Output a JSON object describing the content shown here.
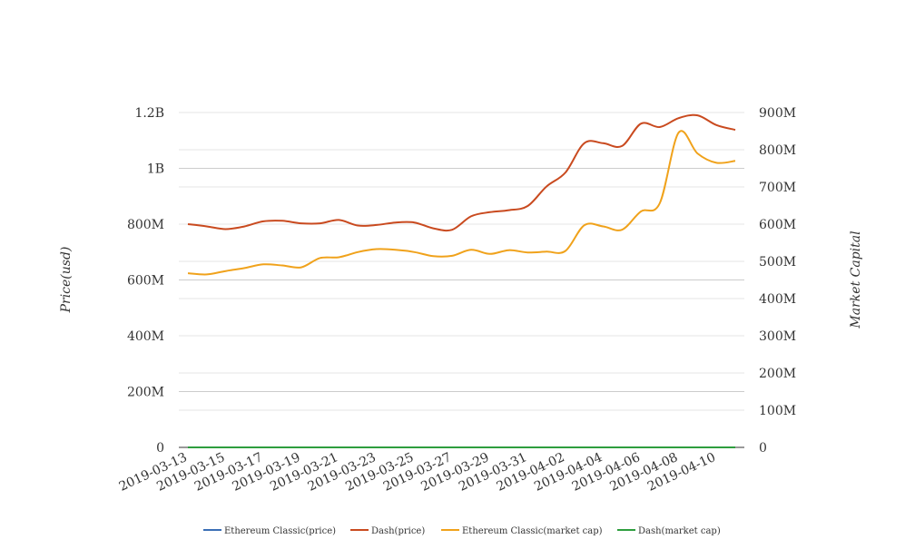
{
  "chart_data": {
    "type": "line",
    "title": "",
    "x": [
      "2019-03-13",
      "2019-03-14",
      "2019-03-15",
      "2019-03-16",
      "2019-03-17",
      "2019-03-18",
      "2019-03-19",
      "2019-03-20",
      "2019-03-21",
      "2019-03-22",
      "2019-03-23",
      "2019-03-24",
      "2019-03-25",
      "2019-03-26",
      "2019-03-27",
      "2019-03-28",
      "2019-03-29",
      "2019-03-30",
      "2019-03-31",
      "2019-04-01",
      "2019-04-02",
      "2019-04-03",
      "2019-04-04",
      "2019-04-05",
      "2019-04-06",
      "2019-04-07",
      "2019-04-08",
      "2019-04-09",
      "2019-04-10",
      "2019-04-11"
    ],
    "x_tick_labels": [
      "2019-03-13",
      "2019-03-15",
      "2019-03-17",
      "2019-03-19",
      "2019-03-21",
      "2019-03-23",
      "2019-03-25",
      "2019-03-27",
      "2019-03-29",
      "2019-03-31",
      "2019-04-02",
      "2019-04-04",
      "2019-04-06",
      "2019-04-08",
      "2019-04-10"
    ],
    "y_left": {
      "label": "Price(usd)",
      "range": [
        0,
        1200000000
      ],
      "ticks": [
        0,
        200000000,
        400000000,
        600000000,
        800000000,
        1000000000,
        1200000000
      ],
      "tick_labels": [
        "0",
        "200M",
        "400M",
        "600M",
        "800M",
        "1B",
        "1.2B"
      ]
    },
    "y_right": {
      "label": "Market Capital",
      "range": [
        0,
        900000000
      ],
      "ticks": [
        0,
        100000000,
        200000000,
        300000000,
        400000000,
        500000000,
        600000000,
        700000000,
        800000000,
        900000000
      ],
      "tick_labels": [
        "0",
        "100M",
        "200M",
        "300M",
        "400M",
        "500M",
        "600M",
        "700M",
        "800M",
        "900M"
      ]
    },
    "grid": true,
    "legend_position": "bottom",
    "series": [
      {
        "name": "Ethereum Classic(price)",
        "axis": "left",
        "color": "#3b6fb6",
        "values": [
          4,
          4,
          4,
          4,
          4,
          4,
          4,
          4,
          4,
          4,
          4,
          4,
          4,
          4,
          4,
          4,
          4,
          4,
          4,
          4,
          4,
          4,
          4,
          4,
          4,
          4,
          4,
          4,
          4,
          4
        ]
      },
      {
        "name": "Dash(price)",
        "axis": "left",
        "color": "#c94a1f",
        "values": [
          800000000,
          792000000,
          782000000,
          792000000,
          810000000,
          812000000,
          803000000,
          803000000,
          815000000,
          795000000,
          797000000,
          806000000,
          806000000,
          785000000,
          780000000,
          828000000,
          843000000,
          850000000,
          865000000,
          935000000,
          985000000,
          1090000000,
          1090000000,
          1080000000,
          1160000000,
          1148000000,
          1180000000,
          1190000000,
          1155000000,
          1138000000
        ]
      },
      {
        "name": "Ethereum Classic(market cap)",
        "axis": "right",
        "color": "#f0a21b",
        "values": [
          468000000,
          465000000,
          474000000,
          482000000,
          492000000,
          489000000,
          484000000,
          509000000,
          511000000,
          525000000,
          533000000,
          531000000,
          525000000,
          514000000,
          515000000,
          531000000,
          520000000,
          530000000,
          524000000,
          526000000,
          528000000,
          597000000,
          594000000,
          585000000,
          634000000,
          656000000,
          846000000,
          790000000,
          765000000,
          770000000
        ]
      },
      {
        "name": "Dash(market cap)",
        "axis": "right",
        "color": "#2e9e3e",
        "values": [
          3,
          3,
          3,
          3,
          3,
          3,
          3,
          3,
          3,
          3,
          3,
          3,
          3,
          3,
          3,
          3,
          3,
          3,
          3,
          3,
          3,
          3,
          3,
          3,
          3,
          3,
          3,
          3,
          3,
          3
        ]
      }
    ]
  }
}
